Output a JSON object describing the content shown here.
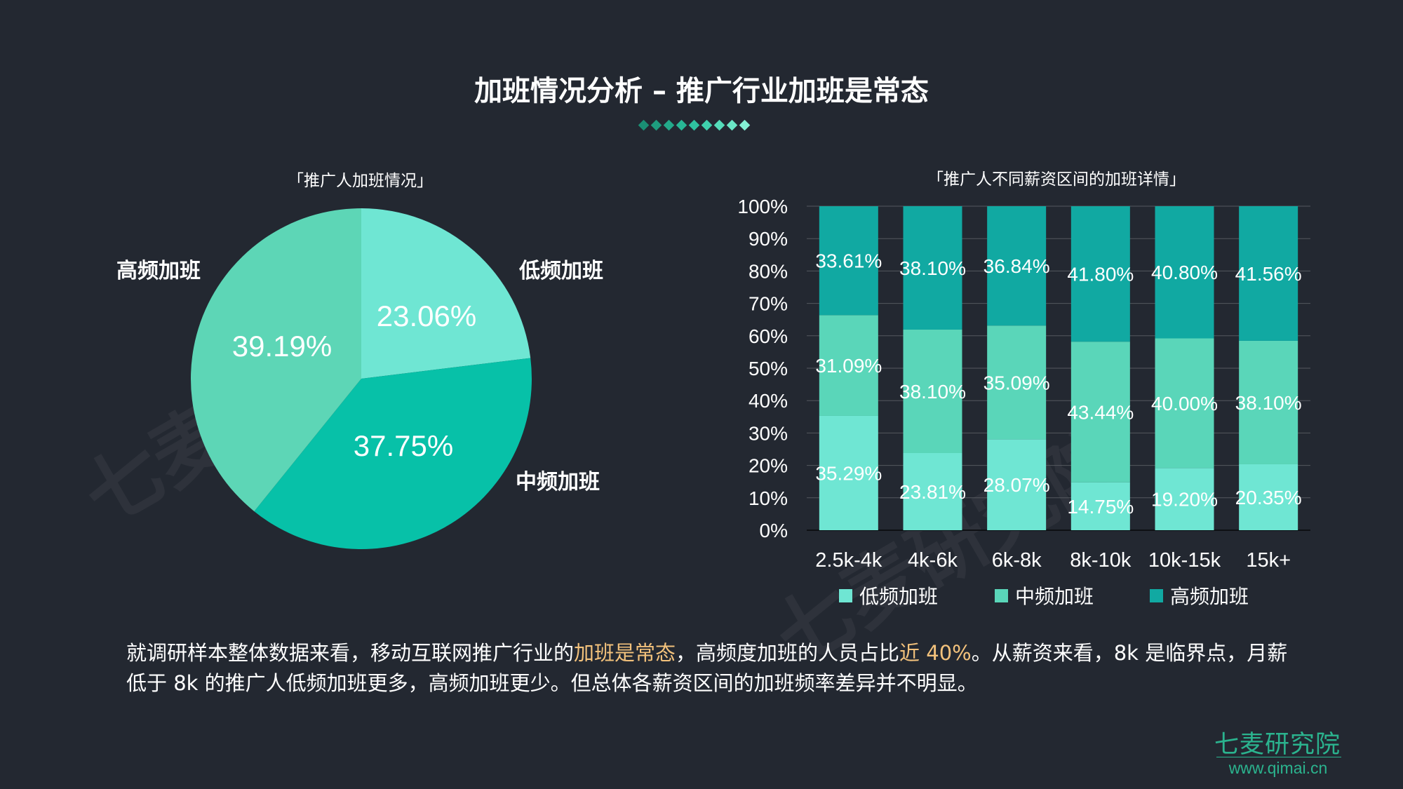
{
  "title": "加班情况分析 – 推广行业加班是常态",
  "colors": {
    "low": "#6fe6d3",
    "mid": "#5ad6b9",
    "high": "#11a9a2",
    "pie_low": "#6fe6d3",
    "pie_mid": "#07c1a8",
    "pie_high": "#5dd6b6",
    "highlight": "#f3c27c",
    "brand": "#2bb38e"
  },
  "pie_subtitle": "「推广人加班情况」",
  "bar_subtitle": "「推广人不同薪资区间的加班详情」",
  "description": {
    "part1": "就调研样本整体数据来看，移动互联网推广行业的",
    "hl1": "加班是常态",
    "part2": "，高频度加班的人员占比",
    "hl2": "近 40%",
    "part3": "。从薪资来看，8k 是临界点，月薪低于 8k 的推广人低频加班更多，高频加班更少。但总体各薪资区间的加班频率差异并不明显。"
  },
  "brand": {
    "name": "七麦研究院",
    "url": "www.qimai.cn",
    "watermark": "七麦研究院"
  },
  "chart_data": [
    {
      "type": "pie",
      "title": "「推广人加班情况」",
      "slices": [
        {
          "name": "低频加班",
          "value": 23.06,
          "label": "23.06%"
        },
        {
          "name": "中频加班",
          "value": 37.75,
          "label": "37.75%"
        },
        {
          "name": "高频加班",
          "value": 39.19,
          "label": "39.19%"
        }
      ]
    },
    {
      "type": "bar",
      "stacked": true,
      "title": "「推广人不同薪资区间的加班详情」",
      "categories": [
        "2.5k-4k",
        "4k-6k",
        "6k-8k",
        "8k-10k",
        "10k-15k",
        "15k+"
      ],
      "ylim": [
        0,
        100
      ],
      "yticks": [
        "0%",
        "10%",
        "20%",
        "30%",
        "40%",
        "50%",
        "60%",
        "70%",
        "80%",
        "90%",
        "100%"
      ],
      "grid": true,
      "legend": "bottom",
      "series": [
        {
          "name": "低频加班",
          "values": [
            35.29,
            23.81,
            28.07,
            14.75,
            19.2,
            20.35
          ],
          "labels": [
            "35.29%",
            "23.81%",
            "28.07%",
            "14.75%",
            "19.20%",
            "20.35%"
          ]
        },
        {
          "name": "中频加班",
          "values": [
            31.09,
            38.1,
            35.09,
            43.44,
            40.0,
            38.1
          ],
          "labels": [
            "31.09%",
            "38.10%",
            "35.09%",
            "43.44%",
            "40.00%",
            "38.10%"
          ]
        },
        {
          "name": "高频加班",
          "values": [
            33.61,
            38.1,
            36.84,
            41.8,
            40.8,
            41.56
          ],
          "labels": [
            "33.61%",
            "38.10%",
            "36.84%",
            "41.80%",
            "40.80%",
            "41.56%"
          ]
        }
      ]
    }
  ]
}
